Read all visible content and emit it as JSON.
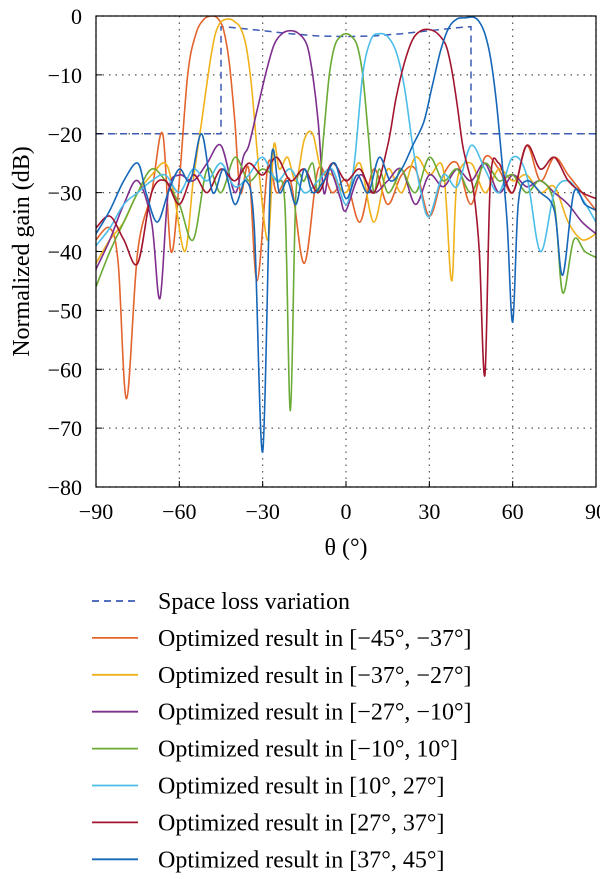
{
  "chart_data": {
    "type": "line",
    "title": "",
    "xlabel": "θ (°)",
    "ylabel": "Normalized gain (dB)",
    "xlim": [
      -90,
      90
    ],
    "ylim": [
      -80,
      0
    ],
    "xticks": [
      -90,
      -60,
      -30,
      0,
      30,
      60,
      90
    ],
    "yticks": [
      0,
      -10,
      -20,
      -30,
      -40,
      -50,
      -60,
      -70,
      -80
    ],
    "xtick_labels": [
      "−90",
      "−60",
      "−30",
      "0",
      "30",
      "60",
      "90"
    ],
    "ytick_labels": [
      "0",
      "−10",
      "−20",
      "−30",
      "−40",
      "−50",
      "−60",
      "−70",
      "−80"
    ],
    "grid": true,
    "legend_position": "below",
    "series": [
      {
        "name": "Space loss variation",
        "color": "#3b5bb5",
        "style": "dashed",
        "x": [
          -90,
          -45,
          -45,
          -40,
          -30,
          -20,
          -10,
          0,
          10,
          20,
          30,
          40,
          45,
          45,
          90
        ],
        "y": [
          -20,
          -20,
          -1.8,
          -2.0,
          -2.5,
          -3.0,
          -3.4,
          -3.5,
          -3.4,
          -3.0,
          -2.5,
          -2.0,
          -1.8,
          -20,
          -20
        ]
      },
      {
        "name": "Optimized result in [−45°, −37°]",
        "color": "#e3642c",
        "style": "solid",
        "x": [
          -90,
          -85,
          -82,
          -79,
          -75,
          -70,
          -66,
          -63,
          -60,
          -57,
          -54,
          -51,
          -48,
          -46,
          -44,
          -42,
          -40,
          -38,
          -35,
          -32,
          -28,
          -25,
          -20,
          -15,
          -10,
          -5,
          0,
          5,
          10,
          15,
          20,
          25,
          30,
          35,
          40,
          45,
          50,
          55,
          60,
          65,
          70,
          75,
          80,
          85,
          90
        ],
        "y": [
          -38,
          -36,
          -42,
          -65,
          -40,
          -30,
          -20,
          -40,
          -28,
          -10,
          -3,
          -0.5,
          0,
          -0.5,
          -2.5,
          -8,
          -18,
          -30,
          -26,
          -45,
          -25,
          -30,
          -28,
          -42,
          -26,
          -30,
          -28,
          -35,
          -26,
          -32,
          -27,
          -26,
          -34,
          -27,
          -25,
          -32,
          -24,
          -26,
          -30,
          -22,
          -28,
          -24,
          -27,
          -30,
          -33
        ]
      },
      {
        "name": "Optimized result in [−37°, −27°]",
        "color": "#f0b21a",
        "style": "solid",
        "x": [
          -90,
          -85,
          -80,
          -75,
          -70,
          -65,
          -62,
          -58,
          -55,
          -52,
          -49,
          -47,
          -45,
          -42,
          -40,
          -38,
          -36,
          -34,
          -31,
          -28,
          -26,
          -24,
          -21,
          -18,
          -15,
          -12,
          -9,
          -5,
          0,
          5,
          10,
          15,
          20,
          25,
          30,
          35,
          38,
          40,
          45,
          50,
          55,
          60,
          65,
          70,
          75,
          80,
          85,
          90
        ],
        "y": [
          -42,
          -38,
          -35,
          -30,
          -27,
          -25,
          -30,
          -40,
          -28,
          -18,
          -8,
          -3,
          -1,
          -0.5,
          -1,
          -2,
          -5,
          -12,
          -28,
          -38,
          -22,
          -26,
          -24,
          -28,
          -21,
          -20,
          -26,
          -27,
          -30,
          -25,
          -35,
          -26,
          -30,
          -24,
          -27,
          -26,
          -45,
          -28,
          -25,
          -30,
          -26,
          -28,
          -27,
          -30,
          -29,
          -35,
          -38,
          -37
        ]
      },
      {
        "name": "Optimized result in [−27°, −10°]",
        "color": "#7e2f8e",
        "style": "solid",
        "x": [
          -90,
          -85,
          -80,
          -75,
          -70,
          -67,
          -64,
          -60,
          -55,
          -50,
          -45,
          -40,
          -37,
          -35,
          -32,
          -29,
          -26,
          -23,
          -20,
          -17,
          -14,
          -12,
          -10,
          -8,
          -6,
          -4,
          -2,
          0,
          5,
          10,
          15,
          20,
          25,
          30,
          35,
          40,
          45,
          50,
          55,
          60,
          65,
          70,
          75,
          80,
          85,
          90
        ],
        "y": [
          -43,
          -38,
          -32,
          -28,
          -35,
          -48,
          -30,
          -27,
          -28,
          -25,
          -22,
          -30,
          -24,
          -22,
          -16,
          -10,
          -5,
          -3,
          -2.5,
          -3,
          -5,
          -10,
          -18,
          -30,
          -26,
          -28,
          -31,
          -33,
          -27,
          -30,
          -28,
          -26,
          -32,
          -27,
          -29,
          -26,
          -28,
          -25,
          -30,
          -27,
          -29,
          -28,
          -30,
          -32,
          -35,
          -37
        ]
      },
      {
        "name": "Optimized result in [−10°, 10°]",
        "color": "#6aaa35",
        "style": "solid",
        "x": [
          -90,
          -85,
          -80,
          -75,
          -70,
          -65,
          -60,
          -55,
          -50,
          -45,
          -40,
          -35,
          -30,
          -25,
          -22,
          -20,
          -18,
          -15,
          -12,
          -10,
          -8,
          -6,
          -4,
          -2,
          0,
          2,
          4,
          6,
          8,
          10,
          12,
          15,
          18,
          20,
          25,
          30,
          35,
          40,
          45,
          50,
          55,
          60,
          65,
          70,
          75,
          78,
          82,
          86,
          90
        ],
        "y": [
          -46,
          -40,
          -35,
          -30,
          -26,
          -28,
          -32,
          -38,
          -26,
          -30,
          -24,
          -28,
          -26,
          -28,
          -32,
          -67,
          -30,
          -28,
          -25,
          -30,
          -20,
          -10,
          -5,
          -3.5,
          -3,
          -3.5,
          -5,
          -10,
          -20,
          -30,
          -26,
          -30,
          -28,
          -26,
          -30,
          -24,
          -28,
          -26,
          -30,
          -25,
          -28,
          -27,
          -30,
          -28,
          -32,
          -47,
          -38,
          -40,
          -41
        ]
      },
      {
        "name": "Optimized result in [10°, 27°]",
        "color": "#4cbde9",
        "style": "solid",
        "x": [
          -90,
          -85,
          -80,
          -75,
          -70,
          -65,
          -60,
          -55,
          -50,
          -45,
          -40,
          -35,
          -30,
          -25,
          -20,
          -15,
          -10,
          -5,
          0,
          3,
          6,
          9,
          12,
          15,
          18,
          21,
          24,
          27,
          30,
          35,
          40,
          45,
          50,
          55,
          60,
          65,
          70,
          75,
          80,
          85,
          90
        ],
        "y": [
          -39,
          -36,
          -32,
          -30,
          -28,
          -27,
          -30,
          -26,
          -28,
          -25,
          -29,
          -27,
          -24,
          -28,
          -26,
          -30,
          -28,
          -26,
          -32,
          -25,
          -10,
          -4,
          -3,
          -3.5,
          -6,
          -12,
          -22,
          -30,
          -34,
          -27,
          -29,
          -22,
          -26,
          -30,
          -24,
          -27,
          -40,
          -30,
          -28,
          -31,
          -35
        ]
      },
      {
        "name": "Optimized result in [27°, 37°]",
        "color": "#a2142f",
        "style": "solid",
        "x": [
          -90,
          -85,
          -80,
          -75,
          -70,
          -65,
          -60,
          -55,
          -50,
          -45,
          -40,
          -35,
          -30,
          -25,
          -20,
          -15,
          -10,
          -5,
          0,
          5,
          10,
          15,
          18,
          21,
          24,
          27,
          30,
          33,
          36,
          38,
          40,
          42,
          44,
          46,
          48,
          50,
          52,
          55,
          60,
          65,
          70,
          75,
          80,
          85,
          90
        ],
        "y": [
          -36,
          -34,
          -38,
          -42,
          -30,
          -28,
          -32,
          -27,
          -30,
          -26,
          -28,
          -25,
          -27,
          -24,
          -28,
          -26,
          -30,
          -25,
          -28,
          -26,
          -30,
          -22,
          -14,
          -8,
          -4,
          -2.5,
          -2.3,
          -3,
          -5,
          -9,
          -15,
          -22,
          -26,
          -30,
          -40,
          -61,
          -28,
          -25,
          -30,
          -22,
          -26,
          -24,
          -28,
          -30,
          -31
        ]
      },
      {
        "name": "Optimized result in [37°, 45°]",
        "color": "#1667b8",
        "style": "solid",
        "x": [
          -90,
          -85,
          -80,
          -75,
          -72,
          -68,
          -64,
          -60,
          -56,
          -52,
          -48,
          -44,
          -40,
          -36,
          -33,
          -30,
          -27,
          -24,
          -21,
          -18,
          -15,
          -12,
          -8,
          -4,
          0,
          4,
          8,
          12,
          16,
          20,
          24,
          28,
          31,
          34,
          37,
          40,
          43,
          46,
          48,
          50,
          52,
          54,
          56,
          58,
          60,
          62,
          65,
          70,
          75,
          78,
          82,
          86,
          90
        ],
        "y": [
          -37,
          -33,
          -28,
          -25,
          -30,
          -35,
          -30,
          -26,
          -28,
          -20,
          -30,
          -26,
          -32,
          -28,
          -36,
          -74,
          -25,
          -30,
          -28,
          -32,
          -26,
          -30,
          -28,
          -25,
          -31,
          -27,
          -30,
          -24,
          -28,
          -26,
          -22,
          -18,
          -12,
          -6,
          -2,
          -0.5,
          -0.3,
          -0.2,
          -1,
          -3,
          -7,
          -14,
          -24,
          -35,
          -52,
          -32,
          -28,
          -30,
          -33,
          -44,
          -30,
          -32,
          -33
        ]
      }
    ]
  }
}
